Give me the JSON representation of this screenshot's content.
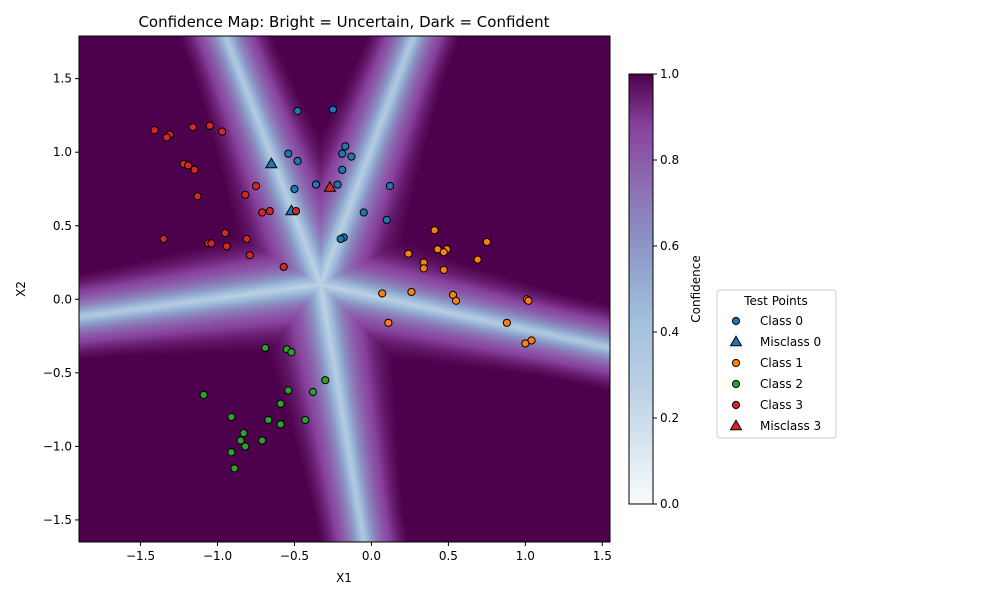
{
  "chart_data": {
    "type": "scatter",
    "title": "Confidence Map: Bright = Uncertain, Dark = Confident",
    "xlabel": "X1",
    "ylabel": "X2",
    "xlim": [
      -1.9,
      1.55
    ],
    "ylim": [
      -1.65,
      1.79
    ],
    "x_ticks": [
      -1.5,
      -1.0,
      -0.5,
      0.0,
      0.5,
      1.0,
      1.5
    ],
    "x_tick_labels": [
      "−1.5",
      "−1.0",
      "−0.5",
      "0.0",
      "0.5",
      "1.0",
      "1.5"
    ],
    "y_ticks": [
      -1.5,
      -1.0,
      -0.5,
      0.0,
      0.5,
      1.0,
      1.5
    ],
    "y_tick_labels": [
      "−1.5",
      "−1.0",
      "−0.5",
      "0.0",
      "0.5",
      "1.0",
      "1.5"
    ],
    "grid": false,
    "background": {
      "kind": "confidence heatmap",
      "decision_center": [
        -0.33,
        0.1
      ],
      "boundary_directions": [
        [
          -0.63,
          0.92
        ],
        [
          0.27,
          1.78
        ],
        [
          1.55,
          -0.33
        ],
        [
          -0.05,
          -1.64
        ],
        [
          -1.9,
          -0.12
        ]
      ]
    },
    "colorbar": {
      "label": "Confidence",
      "range": [
        0.0,
        1.0
      ],
      "ticks": [
        0.0,
        0.2,
        0.4,
        0.6,
        0.8,
        1.0
      ],
      "tick_labels": [
        "0.0",
        "0.2",
        "0.4",
        "0.6",
        "0.8",
        "1.0"
      ],
      "colormap": [
        "#f7fcfd",
        "#9ebcda",
        "#8c6bb1",
        "#88419d",
        "#4d004b"
      ]
    },
    "legend": {
      "title": "Test Points",
      "placement": "center-right outside",
      "entries": [
        {
          "label": "Class 0",
          "marker": "circle",
          "color": "#1f77b4"
        },
        {
          "label": "Misclass 0",
          "marker": "triangle",
          "color": "#1f77b4"
        },
        {
          "label": "Class 1",
          "marker": "circle",
          "color": "#ff7f0e"
        },
        {
          "label": "Class 2",
          "marker": "circle",
          "color": "#2ca02c"
        },
        {
          "label": "Class 3",
          "marker": "circle",
          "color": "#d62728"
        },
        {
          "label": "Misclass 3",
          "marker": "triangle",
          "color": "#d62728"
        }
      ]
    },
    "series": [
      {
        "name": "Class 0",
        "marker": "circle",
        "color": "#1f77b4",
        "points": [
          [
            -0.48,
            1.28
          ],
          [
            -0.25,
            1.29
          ],
          [
            -0.54,
            0.99
          ],
          [
            -0.48,
            0.94
          ],
          [
            -0.17,
            1.04
          ],
          [
            -0.19,
            0.99
          ],
          [
            -0.13,
            0.97
          ],
          [
            -0.19,
            0.88
          ],
          [
            -0.36,
            0.78
          ],
          [
            -0.22,
            0.78
          ],
          [
            -0.5,
            0.75
          ],
          [
            0.12,
            0.77
          ],
          [
            -0.05,
            0.59
          ],
          [
            0.1,
            0.54
          ],
          [
            -0.18,
            0.42
          ],
          [
            -0.2,
            0.41
          ]
        ]
      },
      {
        "name": "Misclass 0",
        "marker": "triangle",
        "color": "#1f77b4",
        "points": [
          [
            -0.65,
            0.92
          ],
          [
            -0.52,
            0.6
          ]
        ]
      },
      {
        "name": "Class 1",
        "marker": "circle",
        "color": "#ff7f0e",
        "points": [
          [
            0.41,
            0.47
          ],
          [
            0.75,
            0.39
          ],
          [
            0.43,
            0.34
          ],
          [
            0.49,
            0.34
          ],
          [
            0.24,
            0.31
          ],
          [
            0.47,
            0.32
          ],
          [
            0.69,
            0.27
          ],
          [
            0.34,
            0.25
          ],
          [
            0.34,
            0.21
          ],
          [
            0.47,
            0.2
          ],
          [
            0.07,
            0.04
          ],
          [
            0.26,
            0.05
          ],
          [
            0.53,
            0.03
          ],
          [
            0.55,
            -0.01
          ],
          [
            1.01,
            0.0
          ],
          [
            1.02,
            -0.01
          ],
          [
            0.11,
            -0.16
          ],
          [
            0.88,
            -0.16
          ],
          [
            1.04,
            -0.28
          ],
          [
            1.0,
            -0.3
          ]
        ]
      },
      {
        "name": "Class 2",
        "marker": "circle",
        "color": "#2ca02c",
        "points": [
          [
            -0.69,
            -0.33
          ],
          [
            -0.55,
            -0.34
          ],
          [
            -0.52,
            -0.36
          ],
          [
            -0.3,
            -0.55
          ],
          [
            -0.54,
            -0.62
          ],
          [
            -0.38,
            -0.63
          ],
          [
            -1.09,
            -0.65
          ],
          [
            -0.59,
            -0.71
          ],
          [
            -0.91,
            -0.8
          ],
          [
            -0.67,
            -0.82
          ],
          [
            -0.43,
            -0.82
          ],
          [
            -0.59,
            -0.85
          ],
          [
            -0.83,
            -0.91
          ],
          [
            -0.85,
            -0.96
          ],
          [
            -0.71,
            -0.96
          ],
          [
            -0.82,
            -1.0
          ],
          [
            -0.91,
            -1.04
          ],
          [
            -0.89,
            -1.15
          ]
        ]
      },
      {
        "name": "Class 3",
        "marker": "circle",
        "color": "#d62728",
        "points": [
          [
            -1.41,
            1.15
          ],
          [
            -1.31,
            1.12
          ],
          [
            -1.33,
            1.1
          ],
          [
            -1.16,
            1.17
          ],
          [
            -1.05,
            1.18
          ],
          [
            -0.97,
            1.14
          ],
          [
            -1.22,
            0.92
          ],
          [
            -1.19,
            0.91
          ],
          [
            -1.15,
            0.88
          ],
          [
            -0.75,
            0.77
          ],
          [
            -1.13,
            0.7
          ],
          [
            -0.82,
            0.71
          ],
          [
            -0.71,
            0.59
          ],
          [
            -0.66,
            0.6
          ],
          [
            -0.49,
            0.6
          ],
          [
            -0.95,
            0.45
          ],
          [
            -1.35,
            0.41
          ],
          [
            -0.81,
            0.41
          ],
          [
            -1.06,
            0.38
          ],
          [
            -1.04,
            0.38
          ],
          [
            -0.94,
            0.36
          ],
          [
            -0.79,
            0.3
          ],
          [
            -0.57,
            0.22
          ]
        ]
      },
      {
        "name": "Misclass 3",
        "marker": "triangle",
        "color": "#d62728",
        "points": [
          [
            -0.27,
            0.76
          ]
        ]
      }
    ]
  }
}
